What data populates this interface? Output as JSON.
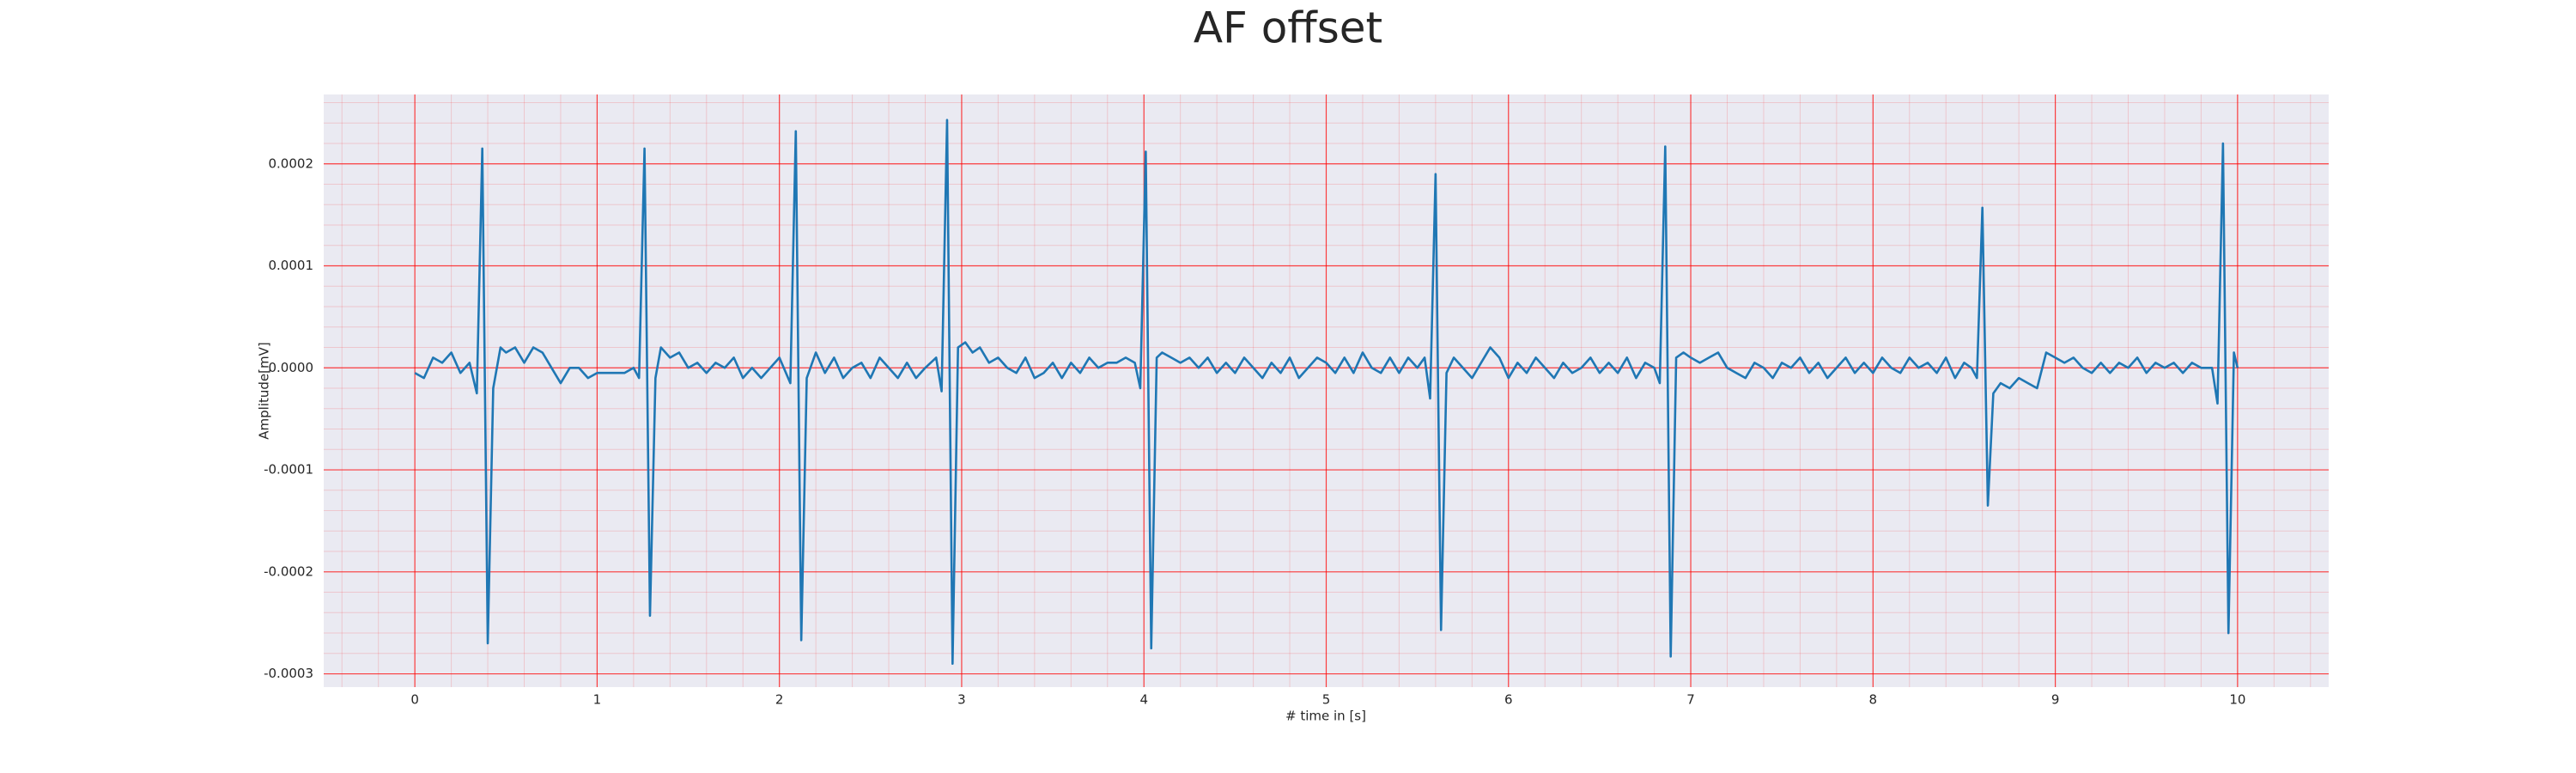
{
  "chart_data": {
    "type": "line",
    "title": "AF offset",
    "x_label": "# time in [s]",
    "y_label": "Amplitude[mV]",
    "x": [
      0,
      0.05,
      0.1,
      0.15,
      0.2,
      0.25,
      0.3,
      0.34,
      0.37,
      0.4,
      0.43,
      0.47,
      0.5,
      0.55,
      0.6,
      0.65,
      0.7,
      0.75,
      0.8,
      0.85,
      0.9,
      0.95,
      1,
      1.05,
      1.1,
      1.15,
      1.2,
      1.23,
      1.26,
      1.29,
      1.32,
      1.35,
      1.4,
      1.45,
      1.5,
      1.55,
      1.6,
      1.65,
      1.7,
      1.75,
      1.8,
      1.85,
      1.9,
      1.95,
      2,
      2.06,
      2.09,
      2.12,
      2.15,
      2.2,
      2.25,
      2.3,
      2.35,
      2.4,
      2.45,
      2.5,
      2.55,
      2.6,
      2.65,
      2.7,
      2.75,
      2.8,
      2.86,
      2.89,
      2.92,
      2.95,
      2.98,
      3.02,
      3.06,
      3.1,
      3.15,
      3.2,
      3.25,
      3.3,
      3.35,
      3.4,
      3.45,
      3.5,
      3.55,
      3.6,
      3.65,
      3.7,
      3.75,
      3.8,
      3.85,
      3.9,
      3.95,
      3.98,
      4.01,
      4.04,
      4.07,
      4.1,
      4.15,
      4.2,
      4.25,
      4.3,
      4.35,
      4.4,
      4.45,
      4.5,
      4.55,
      4.6,
      4.65,
      4.7,
      4.75,
      4.8,
      4.85,
      4.9,
      4.95,
      5,
      5.05,
      5.1,
      5.15,
      5.2,
      5.25,
      5.3,
      5.35,
      5.4,
      5.45,
      5.5,
      5.54,
      5.57,
      5.6,
      5.63,
      5.66,
      5.7,
      5.75,
      5.8,
      5.85,
      5.9,
      5.95,
      6,
      6.05,
      6.1,
      6.15,
      6.2,
      6.25,
      6.3,
      6.35,
      6.4,
      6.45,
      6.5,
      6.55,
      6.6,
      6.65,
      6.7,
      6.75,
      6.8,
      6.83,
      6.86,
      6.89,
      6.92,
      6.96,
      7,
      7.05,
      7.1,
      7.15,
      7.2,
      7.25,
      7.3,
      7.35,
      7.4,
      7.45,
      7.5,
      7.55,
      7.6,
      7.65,
      7.7,
      7.75,
      7.8,
      7.85,
      7.9,
      7.95,
      8,
      8.05,
      8.1,
      8.15,
      8.2,
      8.25,
      8.3,
      8.35,
      8.4,
      8.45,
      8.5,
      8.54,
      8.57,
      8.6,
      8.63,
      8.66,
      8.7,
      8.75,
      8.8,
      8.85,
      8.9,
      8.95,
      9,
      9.05,
      9.1,
      9.15,
      9.2,
      9.25,
      9.3,
      9.35,
      9.4,
      9.45,
      9.5,
      9.55,
      9.6,
      9.65,
      9.7,
      9.75,
      9.8,
      9.86,
      9.89,
      9.92,
      9.95,
      9.98,
      10
    ],
    "series": [
      {
        "color": "#1f77b4",
        "values": [
          -5e-06,
          -1e-05,
          1e-05,
          5e-06,
          1.5e-05,
          -5e-06,
          5e-06,
          -2.5e-05,
          0.000215,
          -0.00027,
          -2e-05,
          2e-05,
          1.5e-05,
          2e-05,
          5e-06,
          2e-05,
          1.5e-05,
          0,
          -1.5e-05,
          0,
          0,
          -1e-05,
          -5e-06,
          -5e-06,
          -5e-06,
          -5e-06,
          0,
          -1e-05,
          0.000215,
          -0.000243,
          -1e-05,
          2e-05,
          1e-05,
          1.5e-05,
          0,
          5e-06,
          -5e-06,
          5e-06,
          0,
          1e-05,
          -1e-05,
          0,
          -1e-05,
          0,
          1e-05,
          -1.5e-05,
          0.000232,
          -0.000267,
          -1e-05,
          1.5e-05,
          -5e-06,
          1e-05,
          -1e-05,
          0,
          5e-06,
          -1e-05,
          1e-05,
          0,
          -1e-05,
          5e-06,
          -1e-05,
          0,
          1e-05,
          -2.3e-05,
          0.000243,
          -0.00029,
          2e-05,
          2.5e-05,
          1.5e-05,
          2e-05,
          5e-06,
          1e-05,
          0,
          -5e-06,
          1e-05,
          -1e-05,
          -5e-06,
          5e-06,
          -1e-05,
          5e-06,
          -5e-06,
          1e-05,
          0,
          5e-06,
          5e-06,
          1e-05,
          5e-06,
          -2e-05,
          0.000212,
          -0.000275,
          1e-05,
          1.5e-05,
          1e-05,
          5e-06,
          1e-05,
          0,
          1e-05,
          -5e-06,
          5e-06,
          -5e-06,
          1e-05,
          0,
          -1e-05,
          5e-06,
          -5e-06,
          1e-05,
          -1e-05,
          0,
          1e-05,
          5e-06,
          -5e-06,
          1e-05,
          -5e-06,
          1.5e-05,
          0,
          -5e-06,
          1e-05,
          -5e-06,
          1e-05,
          0,
          1e-05,
          -3e-05,
          0.00019,
          -0.000257,
          -5e-06,
          1e-05,
          0,
          -1e-05,
          5e-06,
          2e-05,
          1e-05,
          -1e-05,
          5e-06,
          -5e-06,
          1e-05,
          0,
          -1e-05,
          5e-06,
          -5e-06,
          0,
          1e-05,
          -5e-06,
          5e-06,
          -5e-06,
          1e-05,
          -1e-05,
          5e-06,
          0,
          -1.5e-05,
          0.000217,
          -0.000283,
          1e-05,
          1.5e-05,
          1e-05,
          5e-06,
          1e-05,
          1.5e-05,
          0,
          -5e-06,
          -1e-05,
          5e-06,
          0,
          -1e-05,
          5e-06,
          0,
          1e-05,
          -5e-06,
          5e-06,
          -1e-05,
          0,
          1e-05,
          -5e-06,
          5e-06,
          -5e-06,
          1e-05,
          0,
          -5e-06,
          1e-05,
          0,
          5e-06,
          -5e-06,
          1e-05,
          -1e-05,
          5e-06,
          0,
          -1e-05,
          0.000157,
          -0.000135,
          -2.5e-05,
          -1.5e-05,
          -2e-05,
          -1e-05,
          -1.5e-05,
          -2e-05,
          1.5e-05,
          1e-05,
          5e-06,
          1e-05,
          0,
          -5e-06,
          5e-06,
          -5e-06,
          5e-06,
          0,
          1e-05,
          -5e-06,
          5e-06,
          0,
          5e-06,
          -5e-06,
          5e-06,
          0,
          0,
          -3.5e-05,
          0.00022,
          -0.00026,
          1.5e-05,
          0
        ]
      }
    ],
    "xlim": [
      -0.5,
      10.5
    ],
    "xticks": [
      0,
      1,
      2,
      3,
      4,
      5,
      6,
      7,
      8,
      9,
      10
    ],
    "ylim": [
      -0.000313,
      0.000268
    ],
    "yticks": [
      -0.0003,
      -0.0002,
      -0.0001,
      {
        "value": 0,
        "label": "0.0000"
      },
      0.0001,
      0.0002
    ],
    "grid": true,
    "grid_color": "#ff0000",
    "minor_grid": true,
    "minor_divisions": 5,
    "background": "#eaeaf2"
  }
}
